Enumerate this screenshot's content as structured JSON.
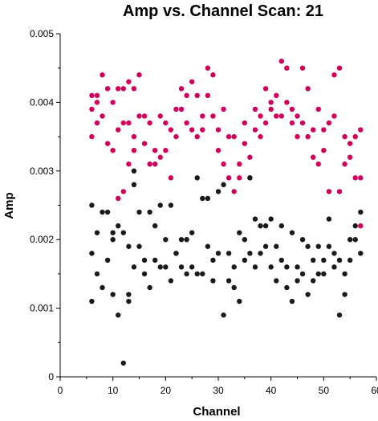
{
  "chart_data": {
    "type": "scatter",
    "title": "Amp vs. Channel Scan: 21",
    "xlabel": "Channel",
    "ylabel": "Amp",
    "xlim": [
      0,
      60
    ],
    "ylim": [
      0,
      0.005
    ],
    "x_ticks": [
      "0",
      "10",
      "20",
      "30",
      "40",
      "50",
      "60"
    ],
    "y_ticks": [
      "0",
      "0.001",
      "0.002",
      "0.003",
      "0.004",
      "0.005"
    ],
    "grid": false,
    "legend": "none",
    "series": [
      {
        "color": "#d0005a",
        "points": [
          [
            6,
            0.0041
          ],
          [
            6,
            0.0039
          ],
          [
            6,
            0.0035
          ],
          [
            7,
            0.0041
          ],
          [
            7,
            0.0037
          ],
          [
            7,
            0.004
          ],
          [
            8,
            0.0044
          ],
          [
            8,
            0.0038
          ],
          [
            9,
            0.0042
          ],
          [
            9,
            0.0034
          ],
          [
            10,
            0.004
          ],
          [
            10,
            0.0033
          ],
          [
            11,
            0.0042
          ],
          [
            11,
            0.0036
          ],
          [
            11,
            0.0026
          ],
          [
            12,
            0.0042
          ],
          [
            12,
            0.0037
          ],
          [
            12,
            0.0027
          ],
          [
            13,
            0.0037
          ],
          [
            13,
            0.0043
          ],
          [
            13,
            0.0031
          ],
          [
            14,
            0.0042
          ],
          [
            14,
            0.0035
          ],
          [
            14,
            0.0033
          ],
          [
            15,
            0.0038
          ],
          [
            15,
            0.0044
          ],
          [
            16,
            0.0038
          ],
          [
            16,
            0.0034
          ],
          [
            17,
            0.0031
          ],
          [
            17,
            0.0037
          ],
          [
            18,
            0.0031
          ],
          [
            18,
            0.0033
          ],
          [
            19,
            0.0032
          ],
          [
            19,
            0.0038
          ],
          [
            20,
            0.0037
          ],
          [
            20,
            0.0033
          ],
          [
            21,
            0.0036
          ],
          [
            21,
            0.0029
          ],
          [
            22,
            0.0039
          ],
          [
            22,
            0.0035
          ],
          [
            23,
            0.0042
          ],
          [
            23,
            0.0039
          ],
          [
            24,
            0.0041
          ],
          [
            24,
            0.0037
          ],
          [
            25,
            0.0043
          ],
          [
            25,
            0.0036
          ],
          [
            26,
            0.0035
          ],
          [
            26,
            0.0041
          ],
          [
            27,
            0.0036
          ],
          [
            27,
            0.0038
          ],
          [
            28,
            0.0045
          ],
          [
            28,
            0.0041
          ],
          [
            29,
            0.0044
          ],
          [
            29,
            0.0038
          ],
          [
            30,
            0.0033
          ],
          [
            30,
            0.0036
          ],
          [
            31,
            0.0039
          ],
          [
            31,
            0.0031
          ],
          [
            32,
            0.0035
          ],
          [
            32,
            0.0029
          ],
          [
            33,
            0.0035
          ],
          [
            33,
            0.0027
          ],
          [
            34,
            0.0031
          ],
          [
            34,
            0.0029
          ],
          [
            35,
            0.0034
          ],
          [
            35,
            0.0037
          ],
          [
            36,
            0.0032
          ],
          [
            36,
            0.0029
          ],
          [
            37,
            0.0039
          ],
          [
            37,
            0.0036
          ],
          [
            38,
            0.0035
          ],
          [
            38,
            0.0038
          ],
          [
            39,
            0.0042
          ],
          [
            39,
            0.0037
          ],
          [
            40,
            0.0039
          ],
          [
            40,
            0.004
          ],
          [
            41,
            0.0041
          ],
          [
            41,
            0.0038
          ],
          [
            42,
            0.0046
          ],
          [
            42,
            0.0038
          ],
          [
            43,
            0.0045
          ],
          [
            43,
            0.004
          ],
          [
            44,
            0.0039
          ],
          [
            44,
            0.0037
          ],
          [
            45,
            0.0035
          ],
          [
            45,
            0.0038
          ],
          [
            46,
            0.0045
          ],
          [
            46,
            0.0037
          ],
          [
            47,
            0.0042
          ],
          [
            47,
            0.0035
          ],
          [
            48,
            0.0036
          ],
          [
            48,
            0.0032
          ],
          [
            49,
            0.0039
          ],
          [
            49,
            0.0031
          ],
          [
            50,
            0.0036
          ],
          [
            50,
            0.0033
          ],
          [
            51,
            0.0037
          ],
          [
            51,
            0.0027
          ],
          [
            52,
            0.0044
          ],
          [
            52,
            0.0038
          ],
          [
            53,
            0.0045
          ],
          [
            53,
            0.0027
          ],
          [
            54,
            0.0035
          ],
          [
            54,
            0.0031
          ],
          [
            55,
            0.0032
          ],
          [
            55,
            0.0034
          ],
          [
            56,
            0.0035
          ],
          [
            56,
            0.0029
          ],
          [
            57,
            0.0036
          ],
          [
            57,
            0.0022
          ],
          [
            57,
            0.0029
          ]
        ]
      },
      {
        "color": "#1a1a1a",
        "points": [
          [
            6,
            0.0025
          ],
          [
            6,
            0.0018
          ],
          [
            6,
            0.0011
          ],
          [
            7,
            0.0021
          ],
          [
            7,
            0.0015
          ],
          [
            8,
            0.0024
          ],
          [
            8,
            0.0013
          ],
          [
            9,
            0.0024
          ],
          [
            9,
            0.0017
          ],
          [
            10,
            0.0021
          ],
          [
            10,
            0.002
          ],
          [
            10,
            0.0012
          ],
          [
            11,
            0.0022
          ],
          [
            11,
            0.0009
          ],
          [
            12,
            0.0021
          ],
          [
            12,
            0.0002
          ],
          [
            13,
            0.0011
          ],
          [
            13,
            0.0012
          ],
          [
            13,
            0.0019
          ],
          [
            14,
            0.0028
          ],
          [
            14,
            0.0016
          ],
          [
            14,
            0.003
          ],
          [
            15,
            0.0024
          ],
          [
            15,
            0.0019
          ],
          [
            16,
            0.0017
          ],
          [
            16,
            0.0015
          ],
          [
            17,
            0.0024
          ],
          [
            17,
            0.0013
          ],
          [
            18,
            0.0022
          ],
          [
            18,
            0.0017
          ],
          [
            19,
            0.0025
          ],
          [
            19,
            0.0016
          ],
          [
            20,
            0.002
          ],
          [
            20,
            0.0016
          ],
          [
            21,
            0.0025
          ],
          [
            21,
            0.0014
          ],
          [
            22,
            0.0018
          ],
          [
            22,
            0.0018
          ],
          [
            23,
            0.002
          ],
          [
            23,
            0.0016
          ],
          [
            24,
            0.002
          ],
          [
            24,
            0.0015
          ],
          [
            25,
            0.0016
          ],
          [
            25,
            0.0021
          ],
          [
            26,
            0.0029
          ],
          [
            26,
            0.0015
          ],
          [
            27,
            0.0026
          ],
          [
            27,
            0.0015
          ],
          [
            28,
            0.0026
          ],
          [
            28,
            0.0019
          ],
          [
            29,
            0.0017
          ],
          [
            29,
            0.0014
          ],
          [
            30,
            0.0027
          ],
          [
            30,
            0.0018
          ],
          [
            31,
            0.0028
          ],
          [
            31,
            0.0009
          ],
          [
            32,
            0.0018
          ],
          [
            32,
            0.0014
          ],
          [
            33,
            0.0016
          ],
          [
            33,
            0.0013
          ],
          [
            34,
            0.0021
          ],
          [
            34,
            0.0011
          ],
          [
            35,
            0.002
          ],
          [
            35,
            0.0017
          ],
          [
            36,
            0.0029
          ],
          [
            36,
            0.0018
          ],
          [
            37,
            0.0023
          ],
          [
            37,
            0.0016
          ],
          [
            38,
            0.0022
          ],
          [
            38,
            0.0018
          ],
          [
            39,
            0.0022
          ],
          [
            39,
            0.0019
          ],
          [
            40,
            0.0023
          ],
          [
            40,
            0.0016
          ],
          [
            41,
            0.0019
          ],
          [
            41,
            0.0014
          ],
          [
            42,
            0.0022
          ],
          [
            42,
            0.0017
          ],
          [
            43,
            0.0016
          ],
          [
            43,
            0.0013
          ],
          [
            44,
            0.0021
          ],
          [
            44,
            0.0011
          ],
          [
            45,
            0.0016
          ],
          [
            45,
            0.0014
          ],
          [
            46,
            0.002
          ],
          [
            46,
            0.0015
          ],
          [
            47,
            0.0019
          ],
          [
            47,
            0.0012
          ],
          [
            48,
            0.0017
          ],
          [
            48,
            0.0014
          ],
          [
            49,
            0.0019
          ],
          [
            49,
            0.0015
          ],
          [
            50,
            0.0017
          ],
          [
            50,
            0.0015
          ],
          [
            51,
            0.0023
          ],
          [
            51,
            0.0019
          ],
          [
            52,
            0.0018
          ],
          [
            52,
            0.0016
          ],
          [
            53,
            0.0017
          ],
          [
            53,
            0.0009
          ],
          [
            54,
            0.0015
          ],
          [
            54,
            0.0012
          ],
          [
            55,
            0.0017
          ],
          [
            55,
            0.002
          ],
          [
            56,
            0.0022
          ],
          [
            56,
            0.002
          ],
          [
            57,
            0.0024
          ],
          [
            57,
            0.0018
          ]
        ]
      }
    ]
  }
}
